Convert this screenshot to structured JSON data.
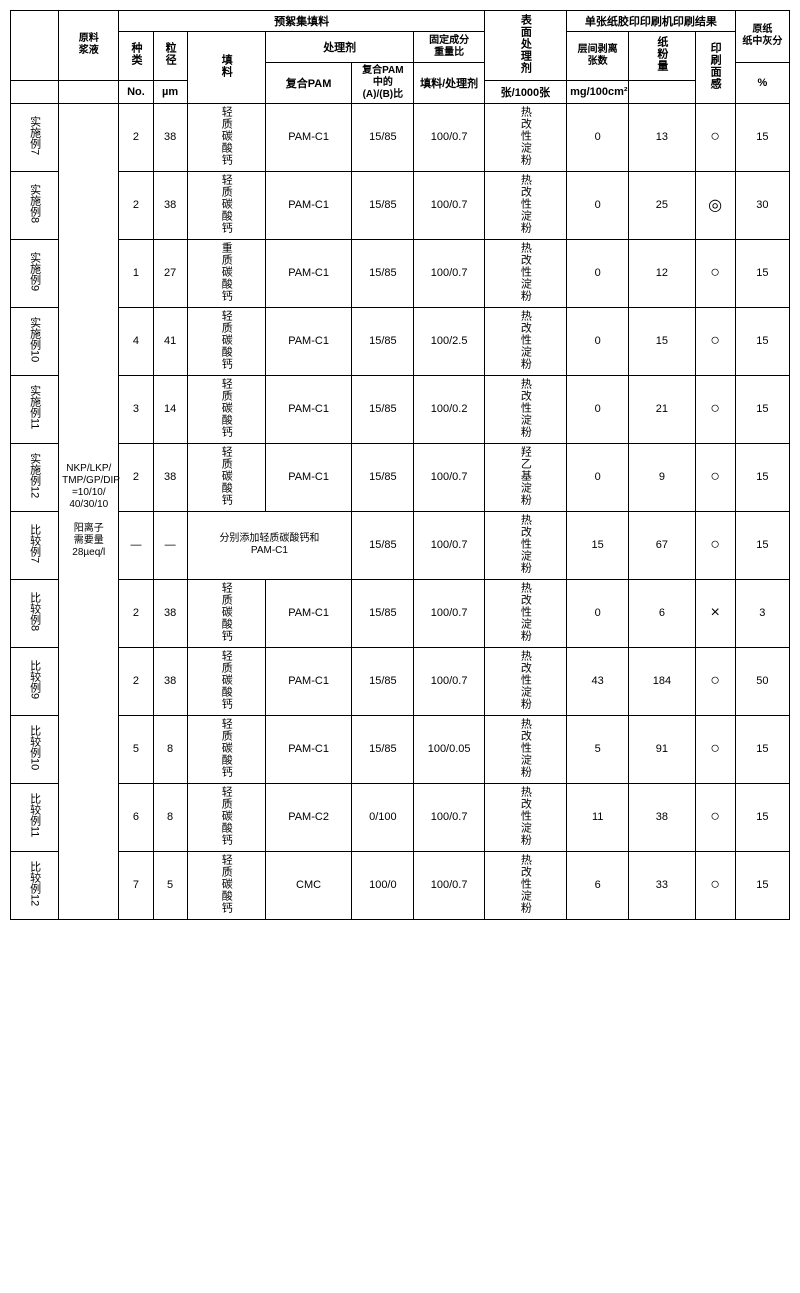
{
  "headers": {
    "group_filler": "预絮集填料",
    "group_print": "单张纸胶印印刷机印刷结果",
    "raw_slurry": "原料\n浆液",
    "kind": "种类",
    "kind_unit": "No.",
    "size": "粒径",
    "size_unit": "µm",
    "filler": "填料",
    "agent": "处理剂",
    "agent_pam": "复合PAM",
    "agent_ratio": "复合PAM\n中的\n(A)/(B)比",
    "solid_ratio": "固定成分\n重量比",
    "solid_ratio_sub": "填料/处理剂",
    "surface_agent": "表面处理剂",
    "peel": "层间剥离\n张数",
    "peel_unit": "张/1000张",
    "dust": "纸粉量",
    "dust_unit": "mg/100cm²",
    "feel": "印刷面感",
    "ash": "原纸\n纸中灰分",
    "ash_unit": "%"
  },
  "raw_slurry_text": "NKP/LKP/\nTMP/GP/DIP\n=10/10/\n40/30/10\n\n阳离子\n需要量\n28µeq/l",
  "rows": [
    {
      "label": "实施例7",
      "kind": "2",
      "size": "38",
      "filler": "轻质碳酸钙",
      "pam": "PAM-C1",
      "ratio": "15/85",
      "solid": "100/0.7",
      "surf": "热改性淀粉",
      "peel": "0",
      "dust": "13",
      "feel": "○",
      "ash": "15"
    },
    {
      "label": "实施例8",
      "kind": "2",
      "size": "38",
      "filler": "轻质碳酸钙",
      "pam": "PAM-C1",
      "ratio": "15/85",
      "solid": "100/0.7",
      "surf": "热改性淀粉",
      "peel": "0",
      "dust": "25",
      "feel": "◎",
      "ash": "30"
    },
    {
      "label": "实施例9",
      "kind": "1",
      "size": "27",
      "filler": "重质碳酸钙",
      "pam": "PAM-C1",
      "ratio": "15/85",
      "solid": "100/0.7",
      "surf": "热改性淀粉",
      "peel": "0",
      "dust": "12",
      "feel": "○",
      "ash": "15"
    },
    {
      "label": "实施例10",
      "kind": "4",
      "size": "41",
      "filler": "轻质碳酸钙",
      "pam": "PAM-C1",
      "ratio": "15/85",
      "solid": "100/2.5",
      "surf": "热改性淀粉",
      "peel": "0",
      "dust": "15",
      "feel": "○",
      "ash": "15"
    },
    {
      "label": "实施例11",
      "kind": "3",
      "size": "14",
      "filler": "轻质碳酸钙",
      "pam": "PAM-C1",
      "ratio": "15/85",
      "solid": "100/0.2",
      "surf": "热改性淀粉",
      "peel": "0",
      "dust": "21",
      "feel": "○",
      "ash": "15"
    },
    {
      "label": "实施例12",
      "kind": "2",
      "size": "38",
      "filler": "轻质碳酸钙",
      "pam": "PAM-C1",
      "ratio": "15/85",
      "solid": "100/0.7",
      "surf": "羟乙基淀粉",
      "peel": "0",
      "dust": "9",
      "feel": "○",
      "ash": "15"
    },
    {
      "label": "比较例7",
      "kind": "—",
      "size": "—",
      "filler": "分别添加轻质碳酸钙和\nPAM-C1",
      "pam": "",
      "ratio": "15/85",
      "solid": "100/0.7",
      "surf": "热改性淀粉",
      "peel": "15",
      "dust": "67",
      "feel": "○",
      "ash": "15",
      "span_filler": true
    },
    {
      "label": "比较例8",
      "kind": "2",
      "size": "38",
      "filler": "轻质碳酸钙",
      "pam": "PAM-C1",
      "ratio": "15/85",
      "solid": "100/0.7",
      "surf": "热改性淀粉",
      "peel": "0",
      "dust": "6",
      "feel": "×",
      "ash": "3"
    },
    {
      "label": "比较例9",
      "kind": "2",
      "size": "38",
      "filler": "轻质碳酸钙",
      "pam": "PAM-C1",
      "ratio": "15/85",
      "solid": "100/0.7",
      "surf": "热改性淀粉",
      "peel": "43",
      "dust": "184",
      "feel": "○",
      "ash": "50"
    },
    {
      "label": "比较例10",
      "kind": "5",
      "size": "8",
      "filler": "轻质碳酸钙",
      "pam": "PAM-C1",
      "ratio": "15/85",
      "solid": "100/0.05",
      "surf": "热改性淀粉",
      "peel": "5",
      "dust": "91",
      "feel": "○",
      "ash": "15"
    },
    {
      "label": "比较例11",
      "kind": "6",
      "size": "8",
      "filler": "轻质碳酸钙",
      "pam": "PAM-C2",
      "ratio": "0/100",
      "solid": "100/0.7",
      "surf": "热改性淀粉",
      "peel": "11",
      "dust": "38",
      "feel": "○",
      "ash": "15"
    },
    {
      "label": "比较例12",
      "kind": "7",
      "size": "5",
      "filler": "轻质碳酸钙",
      "pam": "CMC",
      "ratio": "100/0",
      "solid": "100/0.7",
      "surf": "热改性淀粉",
      "peel": "6",
      "dust": "33",
      "feel": "○",
      "ash": "15"
    }
  ]
}
